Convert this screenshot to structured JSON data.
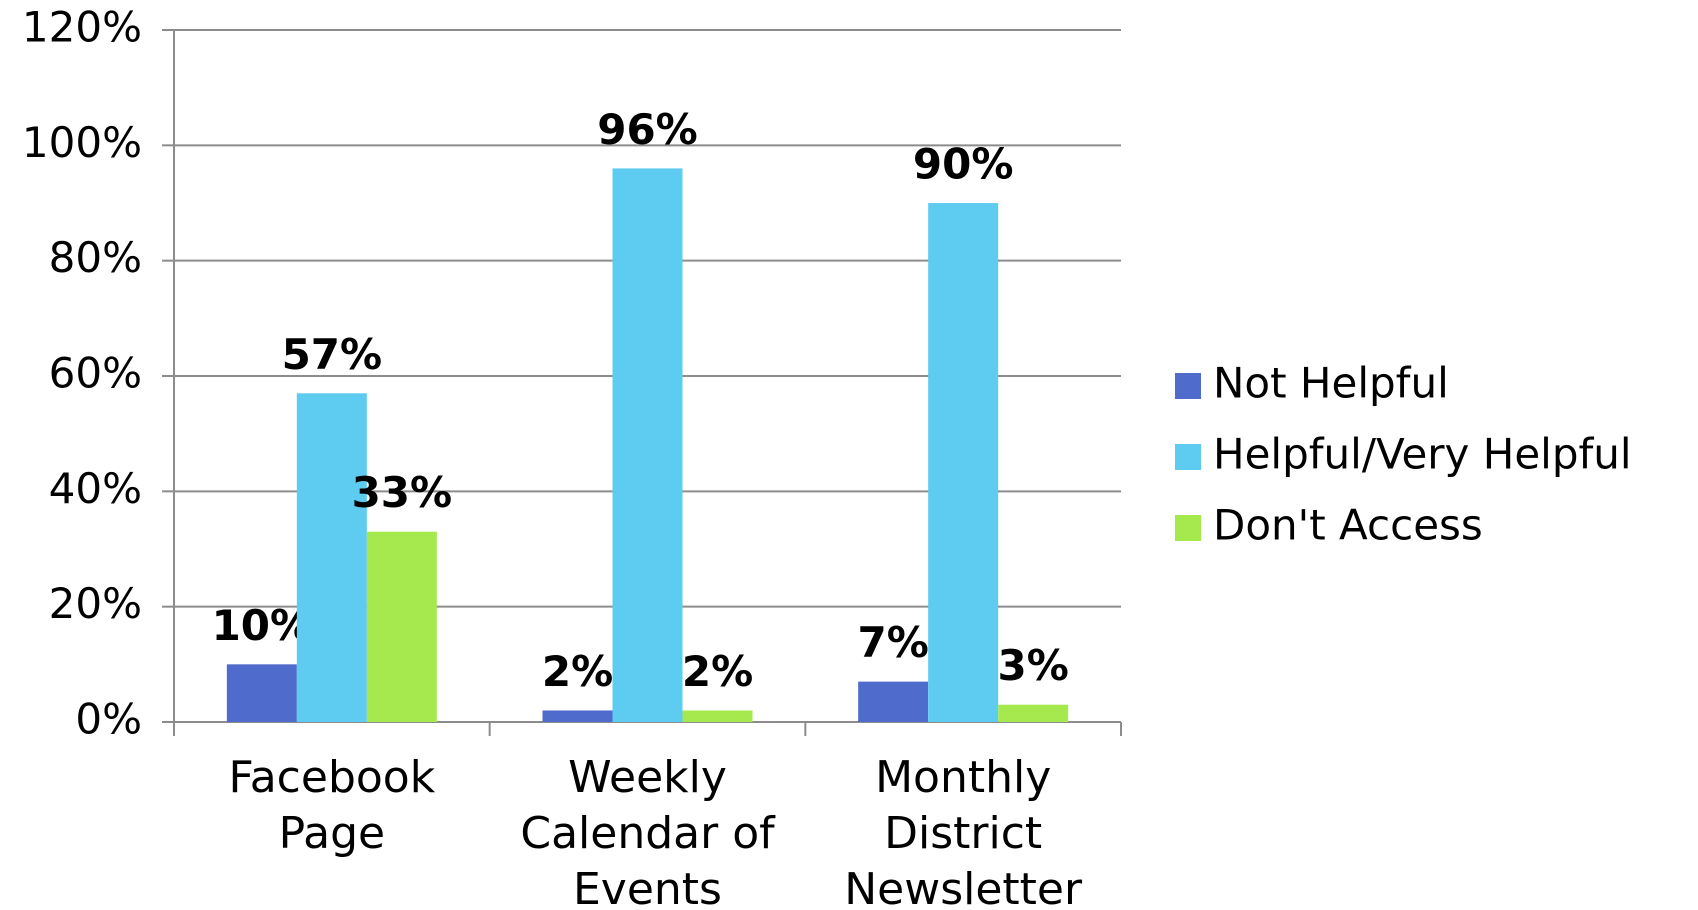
{
  "chart_data": {
    "type": "bar",
    "categories": [
      "Facebook Page",
      "Weekly Calendar of Events",
      "Monthly District Newsletter"
    ],
    "series": [
      {
        "name": "Not Helpful",
        "color": "#4f6bcb",
        "values": [
          10,
          2,
          7
        ],
        "value_labels": [
          "10%",
          "2%",
          "7%"
        ]
      },
      {
        "name": "Helpful/Very Helpful",
        "color": "#5ecbf1",
        "values": [
          57,
          96,
          90
        ],
        "value_labels": [
          "57%",
          "96%",
          "90%"
        ]
      },
      {
        "name": "Don't Access",
        "color": "#a6e94f",
        "values": [
          33,
          2,
          3
        ],
        "value_labels": [
          "33%",
          "2%",
          "3%"
        ]
      }
    ],
    "ylim": [
      0,
      120
    ],
    "yticks": [
      {
        "value": 0,
        "label": "0%"
      },
      {
        "value": 20,
        "label": "20%"
      },
      {
        "value": 40,
        "label": "40%"
      },
      {
        "value": 60,
        "label": "60%"
      },
      {
        "value": 80,
        "label": "80%"
      },
      {
        "value": 100,
        "label": "100%"
      },
      {
        "value": 120,
        "label": "120%"
      }
    ],
    "grid": true,
    "legend": "right"
  }
}
